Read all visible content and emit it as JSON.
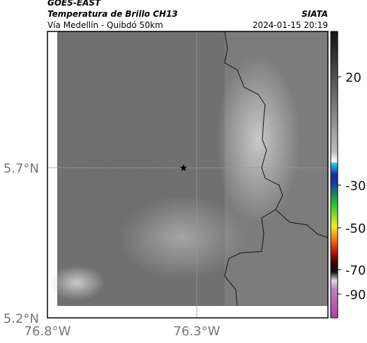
{
  "header": {
    "source": "GOES-EAST",
    "product": "Temperatura de Brillo CH13",
    "region": "Vía Medellín - Quibdó 50km",
    "agency": "SIATA",
    "timestamp": "2024-01-15 20:19"
  },
  "map": {
    "lat_labels": [
      "5.7°N",
      "5.2°N"
    ],
    "lon_labels": [
      "76.8°W",
      "76.3°W"
    ]
  },
  "colorbar": {
    "ticks": [
      20,
      -30,
      -50,
      -70,
      -90
    ]
  }
}
